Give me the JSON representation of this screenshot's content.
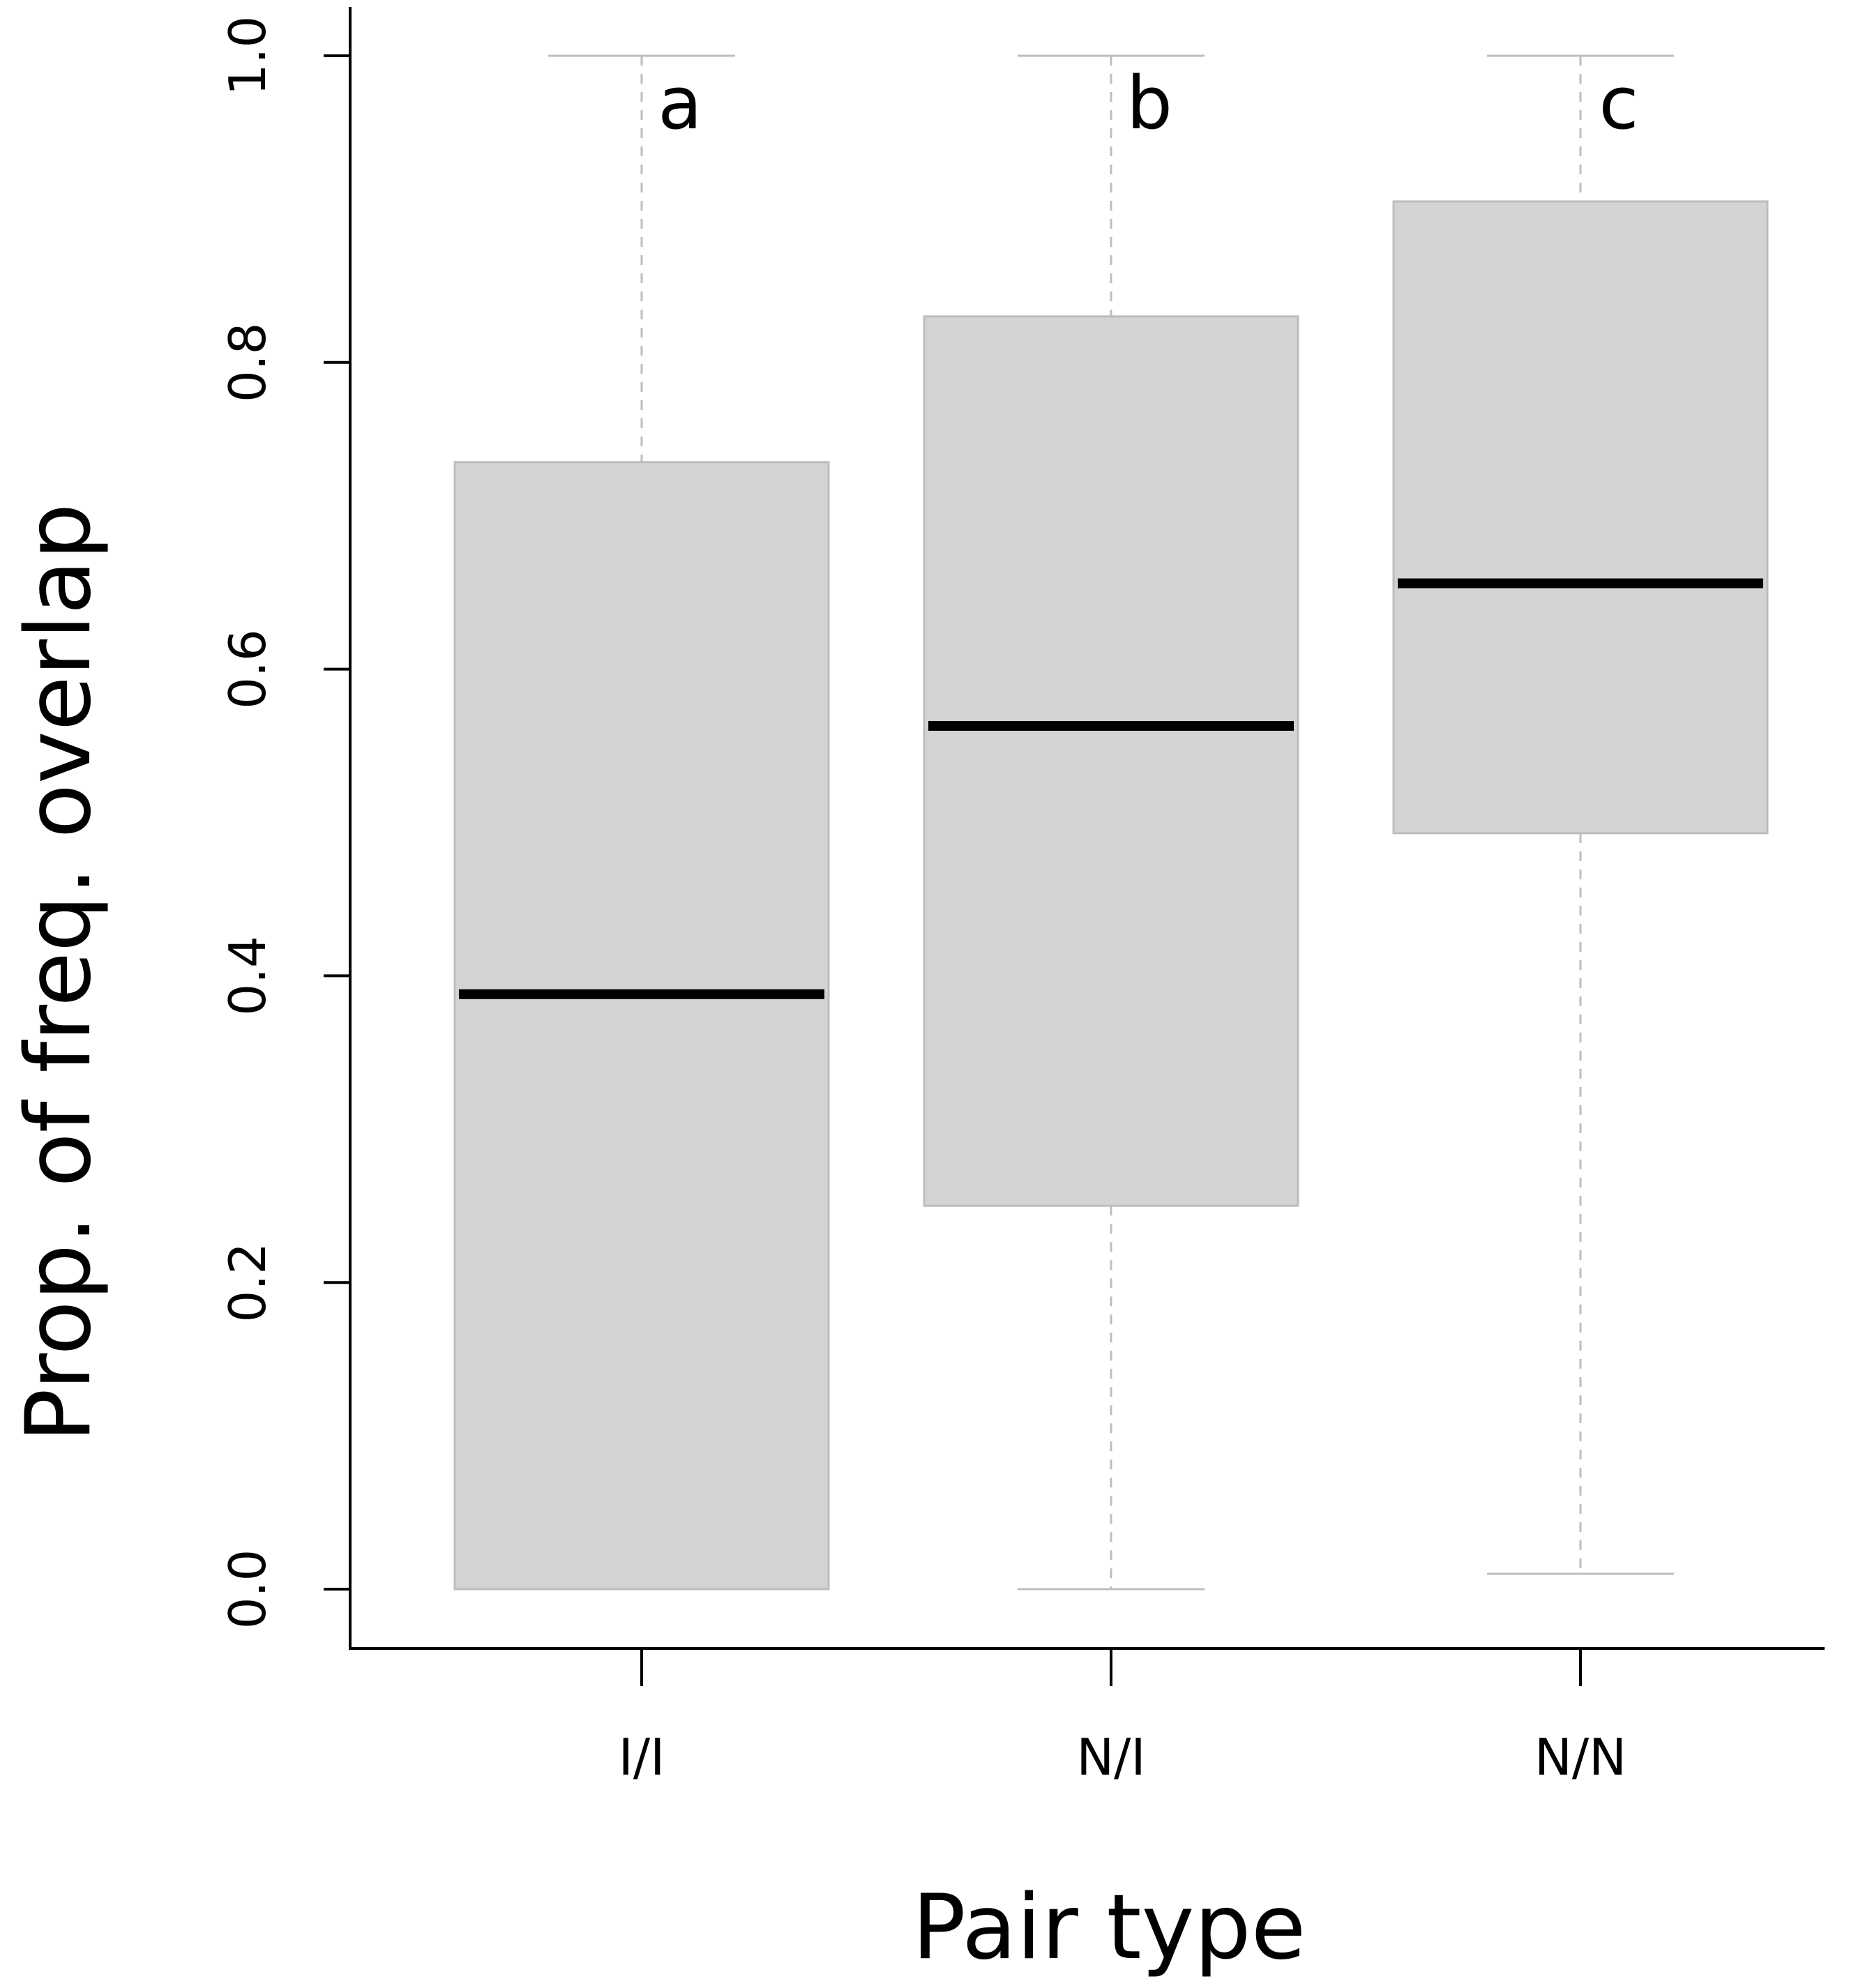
{
  "chart_data": {
    "type": "boxplot",
    "title": "",
    "xlabel": "Pair type",
    "ylabel": "Prop. of freq. overlap",
    "categories": [
      "I/I",
      "N/I",
      "N/N"
    ],
    "ylim": [
      0.0,
      1.0
    ],
    "yticks": [
      0.0,
      0.2,
      0.4,
      0.6,
      0.8,
      1.0
    ],
    "ytick_labels": [
      "0.0",
      "0.2",
      "0.4",
      "0.6",
      "0.8",
      "1.0"
    ],
    "grid": false,
    "box_color": "#d3d3d3",
    "median_color": "#000000",
    "whisker_color": "#bdbdbd",
    "series": [
      {
        "category": "I/I",
        "min": 0.0,
        "q1": 0.0,
        "median": 0.388,
        "q3": 0.735,
        "max": 1.0,
        "letter": "a"
      },
      {
        "category": "N/I",
        "min": 0.0,
        "q1": 0.25,
        "median": 0.563,
        "q3": 0.83,
        "max": 1.0,
        "letter": "b"
      },
      {
        "category": "N/N",
        "min": 0.01,
        "q1": 0.493,
        "median": 0.656,
        "q3": 0.905,
        "max": 1.0,
        "letter": "c"
      }
    ]
  }
}
